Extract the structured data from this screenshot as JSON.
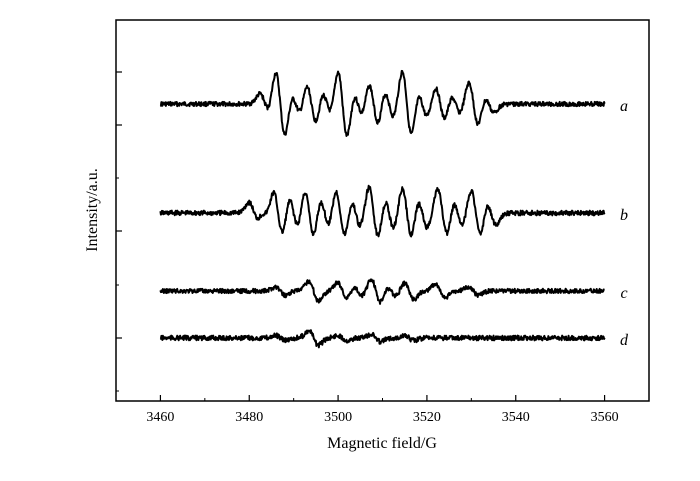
{
  "chart_data": {
    "type": "line",
    "title": "",
    "xlabel": "Magnetic field/G",
    "ylabel": "Intensity/a.u.",
    "xlim": [
      3450,
      3570
    ],
    "x_ticks": [
      3460,
      3480,
      3500,
      3520,
      3540,
      3560
    ],
    "x_tick_labels": [
      "3460",
      "3480",
      "3500",
      "3520",
      "3540",
      "3560"
    ],
    "y_ticks_major": 4,
    "y_ticks_minor": 4,
    "grid": false,
    "legend": "none",
    "line_color": "#000000",
    "series": [
      {
        "label": "a",
        "x_range": [
          3460,
          3560
        ],
        "peaks": [
          {
            "x": 3483.5,
            "amp": 0.3
          },
          {
            "x": 3487,
            "amp": 1.0
          },
          {
            "x": 3490.5,
            "amp": 0.35
          },
          {
            "x": 3494,
            "amp": 0.6
          },
          {
            "x": 3497.5,
            "amp": 0.4
          },
          {
            "x": 3501,
            "amp": 1.05
          },
          {
            "x": 3504.5,
            "amp": 0.4
          },
          {
            "x": 3508,
            "amp": 0.65
          },
          {
            "x": 3511.5,
            "amp": 0.45
          },
          {
            "x": 3515.5,
            "amp": 1.0
          },
          {
            "x": 3519,
            "amp": 0.4
          },
          {
            "x": 3523,
            "amp": 0.5
          },
          {
            "x": 3526.5,
            "amp": 0.3
          },
          {
            "x": 3530.5,
            "amp": 0.65
          },
          {
            "x": 3534,
            "amp": 0.25
          }
        ]
      },
      {
        "label": "b",
        "x_range": [
          3460,
          3560
        ],
        "peaks": [
          {
            "x": 3481,
            "amp": 0.35
          },
          {
            "x": 3483.5,
            "amp": 0.2
          },
          {
            "x": 3486.5,
            "amp": 0.8
          },
          {
            "x": 3490,
            "amp": 0.6
          },
          {
            "x": 3493.5,
            "amp": 0.85
          },
          {
            "x": 3497,
            "amp": 0.55
          },
          {
            "x": 3500.5,
            "amp": 0.85
          },
          {
            "x": 3504,
            "amp": 0.5
          },
          {
            "x": 3508,
            "amp": 0.9
          },
          {
            "x": 3511.5,
            "amp": 0.55
          },
          {
            "x": 3515.5,
            "amp": 0.85
          },
          {
            "x": 3519,
            "amp": 0.5
          },
          {
            "x": 3523.5,
            "amp": 0.8
          },
          {
            "x": 3527,
            "amp": 0.45
          },
          {
            "x": 3531,
            "amp": 0.8
          },
          {
            "x": 3534.5,
            "amp": 0.4
          }
        ]
      },
      {
        "label": "c",
        "x_range": [
          3460,
          3560
        ],
        "peaks": [
          {
            "x": 3487,
            "amp": 0.15
          },
          {
            "x": 3494.5,
            "amp": 0.35
          },
          {
            "x": 3501,
            "amp": 0.3
          },
          {
            "x": 3504.5,
            "amp": 0.2
          },
          {
            "x": 3508.5,
            "amp": 0.45
          },
          {
            "x": 3512,
            "amp": 0.2
          },
          {
            "x": 3516,
            "amp": 0.3
          },
          {
            "x": 3523,
            "amp": 0.25
          },
          {
            "x": 3530.5,
            "amp": 0.15
          }
        ]
      },
      {
        "label": "d",
        "x_range": [
          3460,
          3560
        ],
        "peaks": [
          {
            "x": 3487,
            "amp": 0.1
          },
          {
            "x": 3494.5,
            "amp": 0.3
          },
          {
            "x": 3501,
            "amp": 0.1
          },
          {
            "x": 3508.5,
            "amp": 0.15
          },
          {
            "x": 3516,
            "amp": 0.1
          }
        ]
      }
    ]
  }
}
